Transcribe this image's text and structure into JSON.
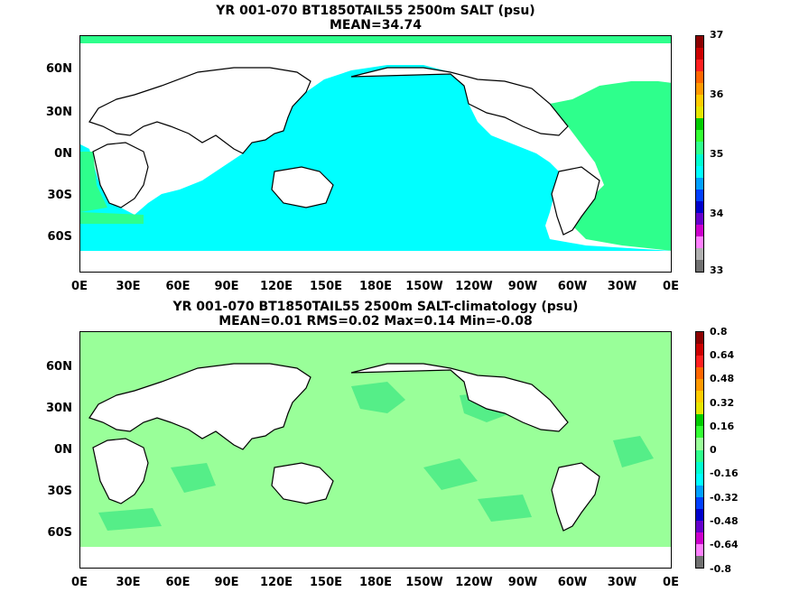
{
  "top_panel": {
    "title_line1": "YR 001-070 BT1850TAIL55 2500m SALT (psu)",
    "title_line2": "MEAN=34.74",
    "ocean_color": "#00ffff",
    "atlantic_color": "#2eff8c",
    "colorbar_labels": [
      "37",
      "36",
      "35",
      "34",
      "33"
    ],
    "colorbar_colors": [
      "#8c0000",
      "#cc0000",
      "#ff2020",
      "#ff6600",
      "#ff9900",
      "#ffcc00",
      "#e6e600",
      "#00cc00",
      "#33ff33",
      "#2eff8c",
      "#00ffd0",
      "#00ffff",
      "#00a0ff",
      "#0040ff",
      "#0000cc",
      "#6600cc",
      "#cc00cc",
      "#ff80ff",
      "#b0b0b0",
      "#707070"
    ]
  },
  "bottom_panel": {
    "title_line1": "YR 001-070 BT1850TAIL55 2500m SALT-climatology (psu)",
    "title_line2": "MEAN=0.01   RMS=0.02   Max=0.14   Min=-0.08",
    "ocean_color": "#99ff99",
    "patch_color": "#55ee88",
    "colorbar_labels": [
      "0.8",
      "0.64",
      "0.48",
      "0.32",
      "0.16",
      "0",
      "-0.16",
      "-0.32",
      "-0.48",
      "-0.64",
      "-0.8"
    ],
    "colorbar_colors": [
      "#8c0000",
      "#cc0000",
      "#ff2020",
      "#ff6600",
      "#ff9900",
      "#ffcc00",
      "#e6e600",
      "#00cc00",
      "#33ff33",
      "#99ff99",
      "#2eff8c",
      "#00ffd0",
      "#00ffff",
      "#00a0ff",
      "#0040ff",
      "#0000cc",
      "#6600cc",
      "#cc00cc",
      "#ff80ff",
      "#707070"
    ]
  },
  "y_ticks": [
    "60N",
    "30N",
    "0N",
    "30S",
    "60S"
  ],
  "x_ticks": [
    "0E",
    "30E",
    "60E",
    "90E",
    "120E",
    "150E",
    "180E",
    "150W",
    "120W",
    "90W",
    "60W",
    "30W",
    "0E"
  ]
}
